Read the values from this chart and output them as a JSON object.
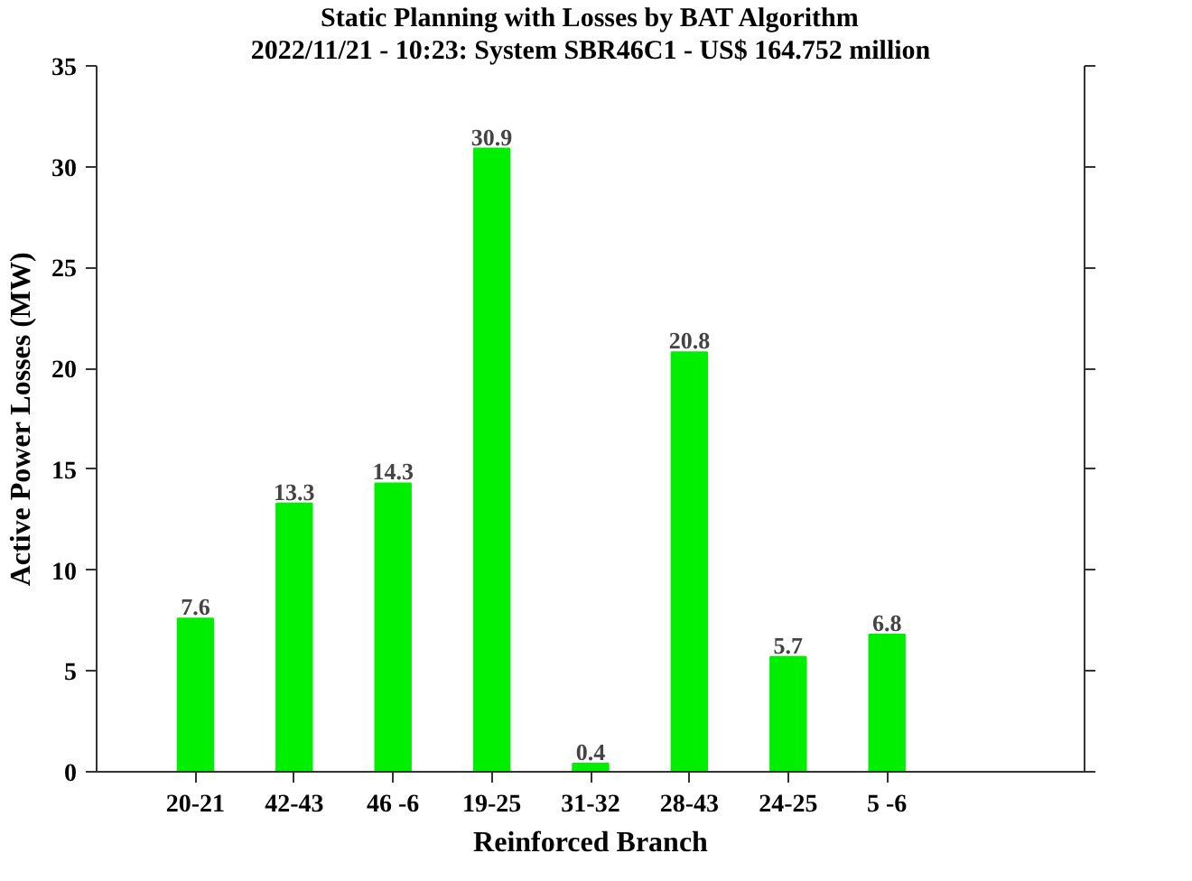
{
  "chart_data": {
    "type": "bar",
    "title": "Static Planning with Losses by BAT Algorithm",
    "subtitle": "2022/11/21 - 10:23: System SBR46C1 - US$ 164.752 million",
    "xlabel": "Reinforced Branch",
    "ylabel": "Active Power Losses (MW)",
    "categories": [
      "20-21",
      "42-43",
      "46 -6",
      "19-25",
      "31-32",
      "28-43",
      "24-25",
      "5 -6"
    ],
    "values": [
      7.6,
      13.3,
      14.3,
      30.9,
      0.4,
      20.8,
      5.7,
      6.8
    ],
    "color": "#00ee00",
    "ylim": [
      0,
      35
    ],
    "yticks": [
      0,
      5,
      10,
      15,
      20,
      25,
      30,
      35
    ],
    "data_labels": true,
    "grid": false
  }
}
